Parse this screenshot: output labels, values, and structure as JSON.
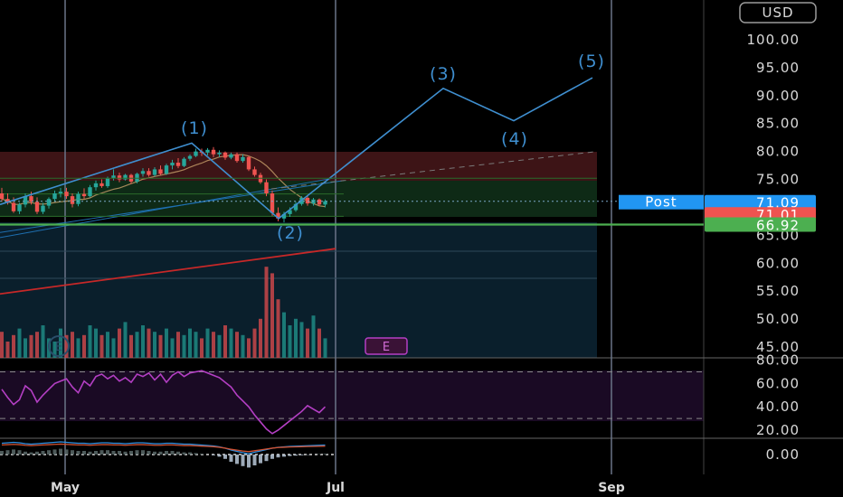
{
  "currency_button": "USD",
  "colors": {
    "background": "#000000",
    "up": "#26a69a",
    "down": "#ef5350",
    "wave_line": "#3f8fd0",
    "rsi": "#b43fc4",
    "support": "#4caf50",
    "ma_long": "#c62828",
    "ma_short": "#c9a06a"
  },
  "chart_data": {
    "type": "candlestick",
    "price_axis": {
      "ticks": [
        "100.00",
        "95.00",
        "90.00",
        "85.00",
        "80.00",
        "75.00",
        "65.00",
        "60.00",
        "55.00",
        "50.00",
        "45.00"
      ],
      "ylim": [
        44,
        101
      ]
    },
    "x_ticks": [
      "May",
      "Jul",
      "Sep"
    ],
    "price_tags": [
      {
        "label": "Post",
        "value": "71.09",
        "color": "#2196f3"
      },
      {
        "label": "",
        "value": "71.01",
        "color": "#ef5350"
      },
      {
        "label": "",
        "value": "66.92",
        "color": "#4caf50"
      }
    ],
    "elliott_wave_labels": [
      "(1)",
      "(2)",
      "(3)",
      "(4)",
      "(5)"
    ],
    "elliott_wave_points": [
      {
        "wave": "start",
        "value": 70.5
      },
      {
        "wave": "(1)",
        "value": 81.5
      },
      {
        "wave": "(2)",
        "value": 68.0
      },
      {
        "wave": "(3)",
        "value": 91.3
      },
      {
        "wave": "(4)",
        "value": 85.5
      },
      {
        "wave": "(5)",
        "value": 93.2
      }
    ],
    "support_level": 66.92,
    "earnings_markers": [
      "E",
      "E"
    ],
    "candles": [
      {
        "o": 72.5,
        "h": 73.5,
        "l": 71.0,
        "c": 71.5
      },
      {
        "o": 71.5,
        "h": 72.5,
        "l": 70.5,
        "c": 70.8
      },
      {
        "o": 70.8,
        "h": 71.8,
        "l": 69.0,
        "c": 69.3
      },
      {
        "o": 69.3,
        "h": 70.8,
        "l": 68.8,
        "c": 70.5
      },
      {
        "o": 70.5,
        "h": 72.5,
        "l": 70.0,
        "c": 72.0
      },
      {
        "o": 72.0,
        "h": 72.8,
        "l": 70.5,
        "c": 71.0
      },
      {
        "o": 71.0,
        "h": 71.8,
        "l": 68.8,
        "c": 69.2
      },
      {
        "o": 69.2,
        "h": 70.8,
        "l": 68.8,
        "c": 70.3
      },
      {
        "o": 70.3,
        "h": 71.8,
        "l": 69.8,
        "c": 71.5
      },
      {
        "o": 71.5,
        "h": 73.0,
        "l": 71.0,
        "c": 72.5
      },
      {
        "o": 72.5,
        "h": 73.5,
        "l": 71.8,
        "c": 72.8
      },
      {
        "o": 72.8,
        "h": 73.5,
        "l": 71.5,
        "c": 72.0
      },
      {
        "o": 72.0,
        "h": 72.5,
        "l": 70.0,
        "c": 70.6
      },
      {
        "o": 70.6,
        "h": 72.8,
        "l": 70.2,
        "c": 72.4
      },
      {
        "o": 72.4,
        "h": 73.4,
        "l": 71.5,
        "c": 72.0
      },
      {
        "o": 72.0,
        "h": 74.0,
        "l": 71.8,
        "c": 73.6
      },
      {
        "o": 73.6,
        "h": 74.8,
        "l": 73.0,
        "c": 74.3
      },
      {
        "o": 74.3,
        "h": 75.0,
        "l": 73.5,
        "c": 73.8
      },
      {
        "o": 73.8,
        "h": 75.5,
        "l": 73.5,
        "c": 75.2
      },
      {
        "o": 75.2,
        "h": 76.8,
        "l": 74.8,
        "c": 75.7
      },
      {
        "o": 75.7,
        "h": 76.2,
        "l": 74.5,
        "c": 75.0
      },
      {
        "o": 75.0,
        "h": 76.0,
        "l": 74.8,
        "c": 75.8
      },
      {
        "o": 75.8,
        "h": 76.0,
        "l": 74.2,
        "c": 74.6
      },
      {
        "o": 74.6,
        "h": 76.2,
        "l": 74.3,
        "c": 76.0
      },
      {
        "o": 76.0,
        "h": 77.0,
        "l": 75.5,
        "c": 76.5
      },
      {
        "o": 76.5,
        "h": 77.0,
        "l": 75.5,
        "c": 75.8
      },
      {
        "o": 75.8,
        "h": 77.2,
        "l": 75.5,
        "c": 76.8
      },
      {
        "o": 76.8,
        "h": 77.5,
        "l": 75.8,
        "c": 76.0
      },
      {
        "o": 76.0,
        "h": 77.8,
        "l": 75.8,
        "c": 77.5
      },
      {
        "o": 77.5,
        "h": 78.5,
        "l": 76.8,
        "c": 78.0
      },
      {
        "o": 78.0,
        "h": 78.8,
        "l": 77.0,
        "c": 77.4
      },
      {
        "o": 77.4,
        "h": 79.0,
        "l": 77.2,
        "c": 78.7
      },
      {
        "o": 78.7,
        "h": 79.5,
        "l": 78.3,
        "c": 79.2
      },
      {
        "o": 79.2,
        "h": 80.5,
        "l": 79.0,
        "c": 80.0
      },
      {
        "o": 80.0,
        "h": 80.5,
        "l": 79.2,
        "c": 79.8
      },
      {
        "o": 79.8,
        "h": 80.6,
        "l": 79.3,
        "c": 80.3
      },
      {
        "o": 80.3,
        "h": 80.8,
        "l": 79.0,
        "c": 79.5
      },
      {
        "o": 79.5,
        "h": 80.2,
        "l": 79.0,
        "c": 79.8
      },
      {
        "o": 79.8,
        "h": 80.0,
        "l": 78.5,
        "c": 78.9
      },
      {
        "o": 78.9,
        "h": 79.8,
        "l": 78.6,
        "c": 79.5
      },
      {
        "o": 79.5,
        "h": 79.8,
        "l": 78.0,
        "c": 78.3
      },
      {
        "o": 78.3,
        "h": 79.5,
        "l": 78.0,
        "c": 79.0
      },
      {
        "o": 79.0,
        "h": 79.2,
        "l": 76.5,
        "c": 76.8
      },
      {
        "o": 76.8,
        "h": 77.3,
        "l": 75.5,
        "c": 75.8
      },
      {
        "o": 75.8,
        "h": 76.2,
        "l": 74.2,
        "c": 74.5
      },
      {
        "o": 74.5,
        "h": 75.0,
        "l": 72.0,
        "c": 72.5
      },
      {
        "o": 72.5,
        "h": 73.0,
        "l": 68.5,
        "c": 69.0
      },
      {
        "o": 69.0,
        "h": 70.0,
        "l": 67.5,
        "c": 68.0
      },
      {
        "o": 68.0,
        "h": 69.2,
        "l": 67.3,
        "c": 68.8
      },
      {
        "o": 68.8,
        "h": 70.0,
        "l": 68.3,
        "c": 69.5
      },
      {
        "o": 69.5,
        "h": 71.0,
        "l": 69.2,
        "c": 70.6
      },
      {
        "o": 70.6,
        "h": 72.0,
        "l": 70.3,
        "c": 71.7
      },
      {
        "o": 71.7,
        "h": 72.0,
        "l": 70.3,
        "c": 70.7
      },
      {
        "o": 70.7,
        "h": 71.7,
        "l": 70.3,
        "c": 71.4
      },
      {
        "o": 71.4,
        "h": 71.6,
        "l": 70.2,
        "c": 70.5
      },
      {
        "o": 70.5,
        "h": 71.4,
        "l": 70.0,
        "c": 71.1
      }
    ],
    "volumes": [
      8,
      5,
      7,
      9,
      6,
      7,
      8,
      10,
      6,
      5,
      9,
      7,
      8,
      6,
      7,
      10,
      9,
      7,
      8,
      6,
      9,
      11,
      7,
      8,
      10,
      9,
      8,
      7,
      9,
      6,
      8,
      7,
      9,
      8,
      6,
      9,
      8,
      7,
      10,
      9,
      8,
      7,
      6,
      9,
      12,
      28,
      26,
      18,
      14,
      10,
      12,
      11,
      9,
      13,
      9,
      6
    ],
    "oscillator": {
      "ticks": [
        "80.00",
        "60.00",
        "40.00",
        "20.00"
      ],
      "ylim": [
        13,
        82
      ],
      "overbought": 70,
      "oversold": 30
    },
    "rsi": [
      55,
      48,
      42,
      46,
      58,
      54,
      44,
      50,
      55,
      60,
      62,
      64,
      57,
      52,
      62,
      58,
      66,
      68,
      64,
      67,
      62,
      65,
      61,
      68,
      66,
      69,
      63,
      68,
      61,
      67,
      70,
      66,
      69,
      70,
      71,
      69,
      67,
      65,
      61,
      57,
      50,
      45,
      40,
      33,
      27,
      21,
      17,
      20,
      24,
      28,
      32,
      36,
      41,
      38,
      35,
      40
    ],
    "macd_axis": {
      "ticks": [
        "0.00"
      ]
    },
    "macd_hist": [
      0.5,
      0.6,
      0.7,
      0.6,
      0.4,
      0.3,
      0.4,
      0.5,
      0.6,
      0.7,
      0.8,
      0.7,
      0.6,
      0.5,
      0.5,
      0.4,
      0.5,
      0.6,
      0.6,
      0.5,
      0.5,
      0.4,
      0.5,
      0.6,
      0.6,
      0.5,
      0.4,
      0.4,
      0.5,
      0.5,
      0.4,
      0.3,
      0.3,
      0.2,
      0.1,
      0.0,
      -0.1,
      -0.3,
      -0.6,
      -1.0,
      -1.3,
      -1.6,
      -1.8,
      -1.5,
      -1.2,
      -0.9,
      -0.6,
      -0.4,
      -0.3,
      -0.2,
      -0.15,
      -0.1,
      -0.05,
      0.0,
      0.05,
      0.1
    ]
  }
}
